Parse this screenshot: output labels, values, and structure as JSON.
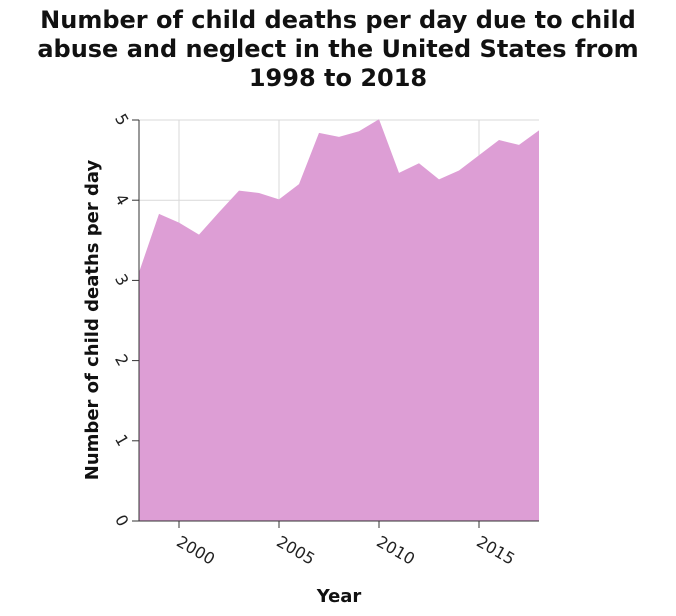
{
  "chart_data": {
    "type": "area",
    "title": "Number of child deaths per day due to child abuse and neglect in the United States from 1998 to 2018",
    "xlabel": "Year",
    "ylabel": "Number of child deaths per day",
    "x": [
      1998,
      1999,
      2000,
      2001,
      2002,
      2003,
      2004,
      2005,
      2006,
      2007,
      2008,
      2009,
      2010,
      2011,
      2012,
      2013,
      2014,
      2015,
      2016,
      2017,
      2018
    ],
    "values": [
      3.1,
      3.83,
      3.72,
      3.57,
      3.85,
      4.12,
      4.09,
      4.01,
      4.2,
      4.84,
      4.79,
      4.86,
      5.01,
      4.34,
      4.46,
      4.26,
      4.37,
      4.56,
      4.75,
      4.69,
      4.87
    ],
    "xlim": [
      1998,
      2018
    ],
    "ylim": [
      0,
      5
    ],
    "x_ticks": [
      "2000",
      "2005",
      "2010",
      "2015"
    ],
    "y_ticks": [
      "0",
      "1",
      "2",
      "3",
      "4",
      "5"
    ],
    "fill_color": "#dd9ed5",
    "grid": true
  }
}
